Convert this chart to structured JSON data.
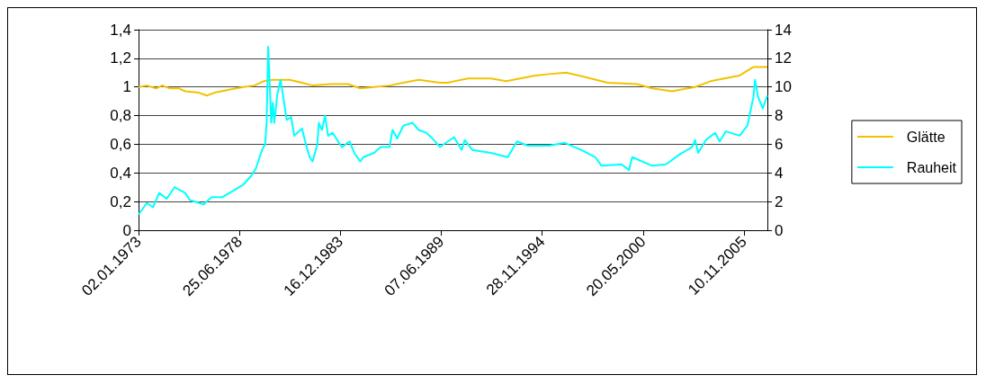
{
  "chart_data": {
    "type": "line",
    "xlim": [
      "1973-01-02",
      "2007-02-15"
    ],
    "xticks": [
      {
        "value": "1973-01-02",
        "label": "02.01.1973"
      },
      {
        "value": "1978-06-25",
        "label": "25.06.1978"
      },
      {
        "value": "1983-12-16",
        "label": "16.12.1983"
      },
      {
        "value": "1989-06-07",
        "label": "07.06.1989"
      },
      {
        "value": "1994-11-28",
        "label": "28.11.1994"
      },
      {
        "value": "2000-05-20",
        "label": "20.05.2000"
      },
      {
        "value": "2005-11-10",
        "label": "10.11.2005"
      }
    ],
    "ylim": [
      0,
      1.4
    ],
    "yticks": [
      {
        "value": 0,
        "label": "0"
      },
      {
        "value": 0.2,
        "label": "0,2"
      },
      {
        "value": 0.4,
        "label": "0,4"
      },
      {
        "value": 0.6,
        "label": "0,6"
      },
      {
        "value": 0.8,
        "label": "0,8"
      },
      {
        "value": 1,
        "label": "1"
      },
      {
        "value": 1.2,
        "label": "1,2"
      },
      {
        "value": 1.4,
        "label": "1,4"
      }
    ],
    "y2lim": [
      0,
      14
    ],
    "y2ticks": [
      0,
      2,
      4,
      6,
      8,
      10,
      12,
      14
    ],
    "grid": "y",
    "legend": "right",
    "marker": "none",
    "line_style": "solid",
    "series": [
      {
        "name": "Glätte",
        "color": "#f2c200",
        "x": [
          "1973-01-02",
          "1973-06",
          "1973-12",
          "1974-04",
          "1974-09",
          "1975-03",
          "1975-07",
          "1976-04",
          "1976-09",
          "1977-02",
          "1977-11",
          "1978-09",
          "1979-04",
          "1979-10",
          "1980-04",
          "1981-03",
          "1981-11",
          "1982-06",
          "1983-06",
          "1984-05",
          "1985-01",
          "1985-10",
          "1986-08",
          "1987-05",
          "1988-03",
          "1989-05",
          "1989-10",
          "1990-11",
          "1992-02",
          "1992-12",
          "1993-09",
          "1994-07",
          "1995-04",
          "1996-03",
          "1997-03",
          "1998-06",
          "2000-01",
          "2000-11",
          "2001-12",
          "2003-03",
          "2004-01",
          "2004-10",
          "2005-08",
          "2006-05",
          "2007-02"
        ],
        "values": [
          1.0,
          1.01,
          0.99,
          1.01,
          0.99,
          0.99,
          0.97,
          0.96,
          0.94,
          0.96,
          0.98,
          1.0,
          1.01,
          1.04,
          1.05,
          1.05,
          1.03,
          1.01,
          1.02,
          1.02,
          0.99,
          1.0,
          1.01,
          1.03,
          1.05,
          1.03,
          1.03,
          1.06,
          1.06,
          1.04,
          1.06,
          1.08,
          1.09,
          1.1,
          1.07,
          1.03,
          1.02,
          0.99,
          0.97,
          1.0,
          1.04,
          1.06,
          1.08,
          1.14,
          1.14
        ]
      },
      {
        "name": "Rauheit",
        "color": "#00ffff",
        "axis": "y2",
        "x": [
          "1973-01-02",
          "1973-06",
          "1973-10",
          "1974-02",
          "1974-07",
          "1974-12",
          "1975-07",
          "1975-10",
          "1976-07",
          "1976-12",
          "1977-07",
          "1978-03",
          "1978-09",
          "1979-02",
          "1979-05",
          "1979-09",
          "1979-11",
          "1979-12",
          "1980-01",
          "1980-02",
          "1980-03",
          "1980-04",
          "1980-05",
          "1980-07",
          "1980-09",
          "1980-10",
          "1981-01",
          "1981-04",
          "1981-06",
          "1981-11",
          "1982-02",
          "1982-04",
          "1982-06",
          "1982-09",
          "1982-10",
          "1982-12",
          "1983-02",
          "1983-04",
          "1983-07",
          "1984-01",
          "1984-06",
          "1984-09",
          "1985-01",
          "1985-03",
          "1985-10",
          "1986-02",
          "1986-08",
          "1986-10",
          "1987-01",
          "1987-05",
          "1987-11",
          "1988-03",
          "1988-08",
          "1988-12",
          "1989-05",
          "1989-06",
          "1990-02",
          "1990-07",
          "1990-09",
          "1991-02",
          "1992-02",
          "1993-01",
          "1993-07",
          "1994-02",
          "1995-04",
          "1996-02",
          "1997-01",
          "1997-10",
          "1998-02",
          "1999-03",
          "1999-08",
          "1999-10",
          "2000-11",
          "2001-08",
          "2002-05",
          "2003-01",
          "2003-03",
          "2003-05",
          "2003-10",
          "2004-04",
          "2004-07",
          "2004-11",
          "2005-08",
          "2006-01",
          "2006-03",
          "2006-05",
          "2006-06",
          "2006-08",
          "2006-11",
          "2007-02"
        ],
        "values": [
          1.1,
          1.9,
          1.6,
          2.6,
          2.2,
          3.0,
          2.6,
          2.1,
          1.8,
          2.3,
          2.3,
          2.8,
          3.2,
          3.8,
          4.3,
          5.6,
          6.0,
          7.5,
          12.8,
          10.2,
          7.5,
          8.9,
          7.5,
          9.5,
          10.5,
          9.9,
          7.7,
          7.9,
          6.6,
          7.1,
          5.8,
          5.1,
          4.8,
          6.0,
          7.5,
          7.0,
          8.0,
          6.6,
          6.8,
          5.8,
          6.2,
          5.4,
          4.8,
          5.1,
          5.4,
          5.8,
          5.8,
          7.0,
          6.4,
          7.3,
          7.5,
          7.0,
          6.8,
          6.4,
          5.8,
          5.9,
          6.5,
          5.6,
          6.3,
          5.6,
          5.4,
          5.1,
          6.2,
          5.9,
          5.9,
          6.1,
          5.6,
          5.1,
          4.5,
          4.6,
          4.2,
          5.1,
          4.5,
          4.6,
          5.3,
          5.8,
          6.3,
          5.4,
          6.3,
          6.8,
          6.2,
          6.9,
          6.6,
          7.3,
          8.3,
          9.3,
          10.5,
          9.3,
          8.5,
          9.4
        ]
      }
    ]
  }
}
